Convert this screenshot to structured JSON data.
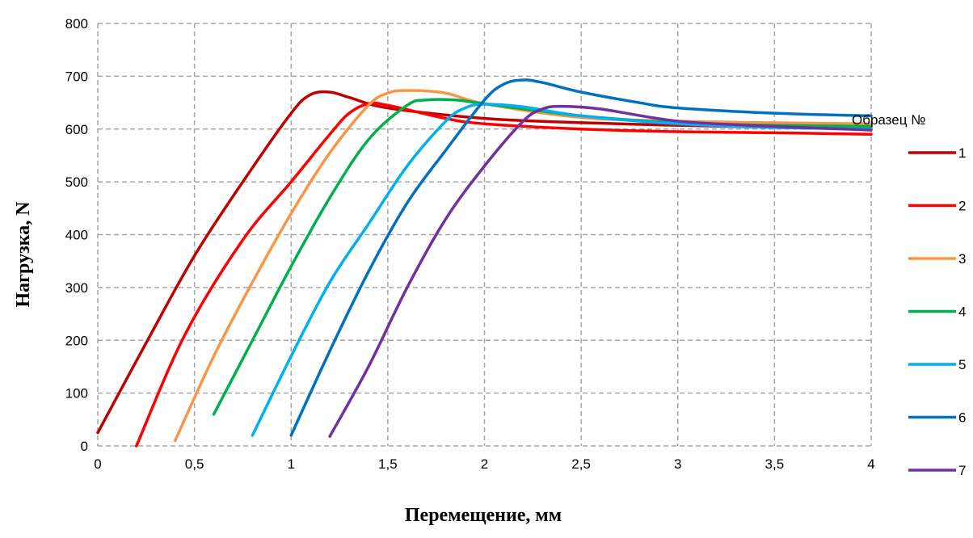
{
  "chart_data": {
    "type": "line",
    "title": "",
    "xlabel": "Перемещение, мм",
    "ylabel": "Нагрузка, N",
    "xlim": [
      0,
      4
    ],
    "ylim": [
      0,
      800
    ],
    "x_ticks": [
      "0",
      "0,5",
      "1",
      "1,5",
      "2",
      "2,5",
      "3",
      "3,5",
      "4"
    ],
    "x_tick_values": [
      0,
      0.5,
      1,
      1.5,
      2,
      2.5,
      3,
      3.5,
      4
    ],
    "y_ticks": [
      "0",
      "100",
      "200",
      "300",
      "400",
      "500",
      "600",
      "700",
      "800"
    ],
    "y_tick_values": [
      0,
      100,
      200,
      300,
      400,
      500,
      600,
      700,
      800
    ],
    "grid": "dashed",
    "legend": {
      "title": "Образец №",
      "placement": "right"
    },
    "series": [
      {
        "name": "1",
        "color": "#c00000",
        "points": [
          [
            0,
            25
          ],
          [
            0.25,
            195
          ],
          [
            0.5,
            360
          ],
          [
            0.75,
            500
          ],
          [
            1.0,
            630
          ],
          [
            1.1,
            665
          ],
          [
            1.2,
            670
          ],
          [
            1.3,
            660
          ],
          [
            1.5,
            640
          ],
          [
            2.0,
            620
          ],
          [
            2.5,
            612
          ],
          [
            3.0,
            607
          ],
          [
            3.5,
            603
          ],
          [
            4.0,
            600
          ]
        ]
      },
      {
        "name": "2",
        "color": "#ff0000",
        "points": [
          [
            0.2,
            0
          ],
          [
            0.45,
            210
          ],
          [
            0.75,
            390
          ],
          [
            1.0,
            500
          ],
          [
            1.2,
            590
          ],
          [
            1.3,
            630
          ],
          [
            1.4,
            648
          ],
          [
            1.5,
            645
          ],
          [
            1.8,
            620
          ],
          [
            2.0,
            610
          ],
          [
            2.5,
            600
          ],
          [
            3.0,
            595
          ],
          [
            3.5,
            593
          ],
          [
            4.0,
            590
          ]
        ]
      },
      {
        "name": "3",
        "color": "#f79646",
        "points": [
          [
            0.4,
            10
          ],
          [
            0.6,
            170
          ],
          [
            0.8,
            310
          ],
          [
            1.0,
            440
          ],
          [
            1.2,
            555
          ],
          [
            1.4,
            645
          ],
          [
            1.5,
            668
          ],
          [
            1.6,
            673
          ],
          [
            1.8,
            668
          ],
          [
            2.0,
            648
          ],
          [
            2.5,
            622
          ],
          [
            3.0,
            615
          ],
          [
            3.5,
            612
          ],
          [
            4.0,
            610
          ]
        ]
      },
      {
        "name": "4",
        "color": "#00b050",
        "points": [
          [
            0.6,
            60
          ],
          [
            0.8,
            200
          ],
          [
            1.0,
            340
          ],
          [
            1.2,
            470
          ],
          [
            1.4,
            580
          ],
          [
            1.6,
            645
          ],
          [
            1.7,
            655
          ],
          [
            1.85,
            655
          ],
          [
            2.0,
            648
          ],
          [
            2.5,
            625
          ],
          [
            3.0,
            612
          ],
          [
            3.5,
            607
          ],
          [
            4.0,
            605
          ]
        ]
      },
      {
        "name": "5",
        "color": "#00b0f0",
        "points": [
          [
            0.8,
            20
          ],
          [
            1.0,
            170
          ],
          [
            1.2,
            310
          ],
          [
            1.4,
            420
          ],
          [
            1.6,
            530
          ],
          [
            1.8,
            615
          ],
          [
            1.9,
            640
          ],
          [
            2.0,
            647
          ],
          [
            2.2,
            642
          ],
          [
            2.5,
            625
          ],
          [
            3.0,
            610
          ],
          [
            3.5,
            603
          ],
          [
            4.0,
            600
          ]
        ]
      },
      {
        "name": "6",
        "color": "#0070c0",
        "points": [
          [
            1.0,
            20
          ],
          [
            1.2,
            180
          ],
          [
            1.4,
            330
          ],
          [
            1.6,
            460
          ],
          [
            1.8,
            560
          ],
          [
            2.0,
            655
          ],
          [
            2.1,
            685
          ],
          [
            2.2,
            693
          ],
          [
            2.3,
            688
          ],
          [
            2.5,
            670
          ],
          [
            2.8,
            650
          ],
          [
            3.0,
            640
          ],
          [
            3.5,
            630
          ],
          [
            4.0,
            625
          ]
        ]
      },
      {
        "name": "7",
        "color": "#7030a0",
        "points": [
          [
            1.2,
            18
          ],
          [
            1.4,
            150
          ],
          [
            1.6,
            300
          ],
          [
            1.8,
            430
          ],
          [
            2.0,
            530
          ],
          [
            2.2,
            615
          ],
          [
            2.3,
            638
          ],
          [
            2.4,
            643
          ],
          [
            2.6,
            638
          ],
          [
            3.0,
            615
          ],
          [
            3.5,
            605
          ],
          [
            4.0,
            598
          ]
        ]
      }
    ]
  }
}
